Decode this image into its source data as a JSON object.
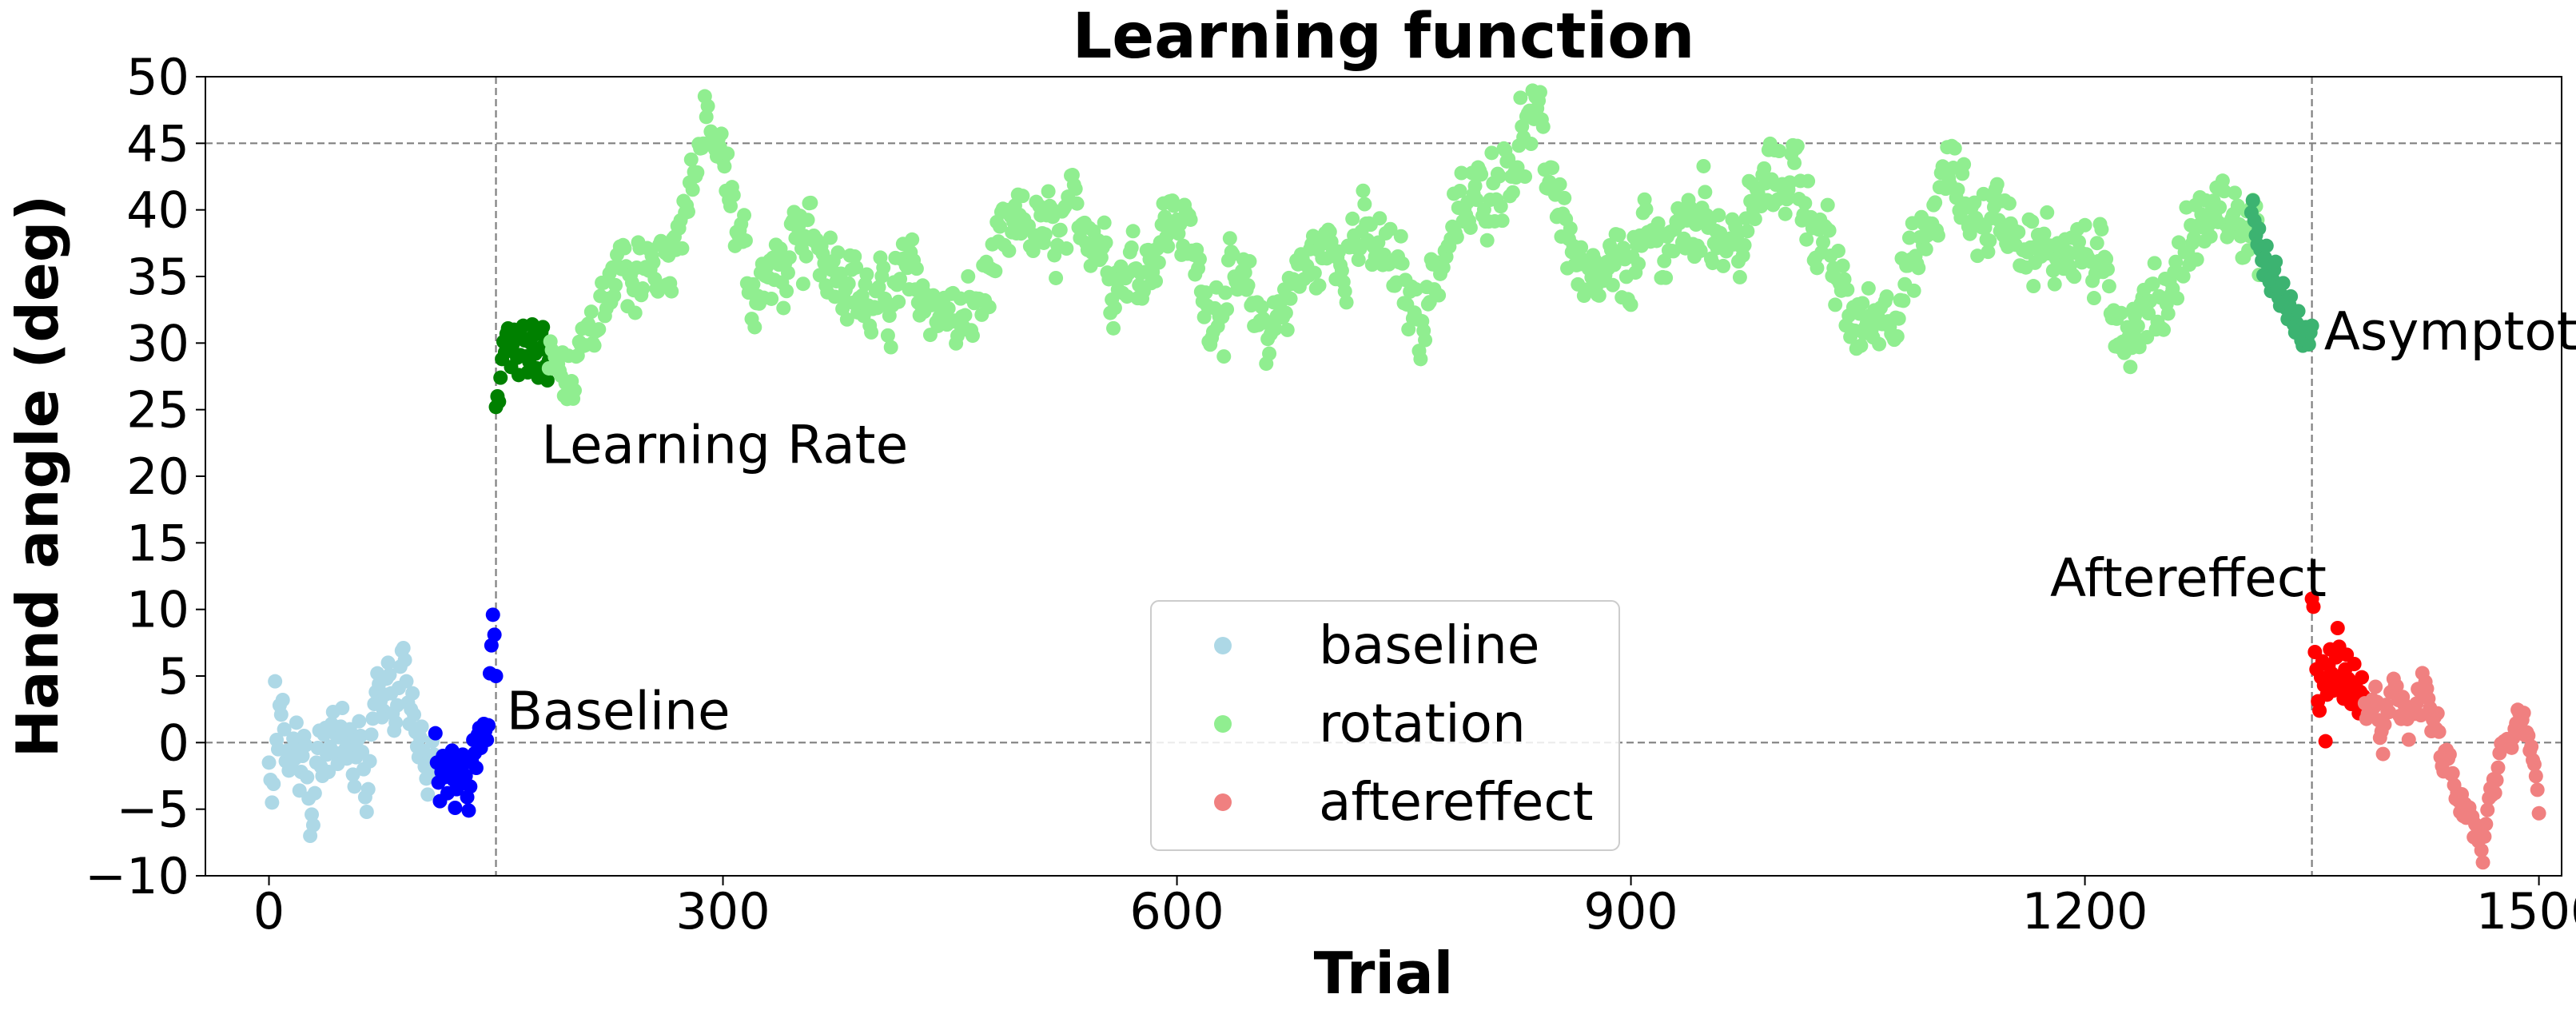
{
  "chart_data": {
    "type": "scatter",
    "title": "Learning function",
    "xlabel": "Trial",
    "ylabel": "Hand angle (deg)",
    "xlim": [
      -42,
      1515
    ],
    "ylim": [
      -10,
      50
    ],
    "xticks": [
      0,
      300,
      600,
      900,
      1200,
      1500
    ],
    "yticks": [
      -10,
      -5,
      0,
      5,
      10,
      15,
      20,
      25,
      30,
      35,
      40,
      45,
      50
    ],
    "reference_lines": {
      "horizontal": [
        0,
        45
      ],
      "vertical": [
        150,
        1350
      ],
      "style": "dashed gray"
    },
    "legend": {
      "placement": "lower center",
      "entries": [
        {
          "label": "baseline",
          "color": "#add8e6"
        },
        {
          "label": "rotation",
          "color": "#90ee90"
        },
        {
          "label": "aftereffect",
          "color": "#f08080"
        }
      ]
    },
    "annotations": [
      {
        "text": "Baseline",
        "x": 157,
        "y": 1.0,
        "color": "#0000ff"
      },
      {
        "text": "Learning Rate",
        "x": 180,
        "y": 21.0,
        "color": "#008000"
      },
      {
        "text": "Asymptote",
        "x": 1358,
        "y": 29.5,
        "color": "#3cb371"
      },
      {
        "text": "Aftereffect",
        "x": 1177,
        "y": 11.0,
        "color": "#ff0000"
      }
    ],
    "series": [
      {
        "name": "baseline",
        "color": "#add8e6",
        "x_range": [
          0,
          110
        ],
        "values": [
          -1.5,
          -2.8,
          -4.5,
          -3.1,
          4.6,
          0.2,
          -0.5,
          2.8,
          2.1,
          3.2,
          1.0,
          -1.4,
          -0.6,
          -2.1,
          -0.8,
          -1.9,
          0.3,
          -1.2,
          1.5,
          -0.4,
          -3.6,
          -2.2,
          -1.0,
          0.5,
          -0.2,
          -2.6,
          -4.2,
          -7.0,
          -5.4,
          -6.2,
          -3.8,
          -1.5,
          -0.4,
          0.9,
          -1.8,
          -2.5,
          0.6,
          1.1,
          -0.9,
          -2.2,
          -0.3,
          1.4,
          2.3,
          0.7,
          -0.8,
          -1.6,
          0.4,
          1.2,
          2.6,
          0.8,
          -0.5,
          -1.2,
          0.3,
          1.0,
          -0.6,
          -2.4,
          -3.3,
          -1.1,
          0.2,
          1.6,
          0.5,
          -0.7,
          -2.0,
          -4.1,
          -5.2,
          -3.5,
          -1.4,
          0.6,
          1.8,
          2.9,
          3.8,
          5.2,
          4.4,
          3.1,
          1.9,
          2.4,
          3.6,
          4.8,
          6.0,
          5.1,
          3.7,
          2.2,
          0.9,
          1.5,
          2.8,
          4.1,
          5.7,
          6.9,
          7.1,
          6.2,
          4.6,
          3.0,
          1.4,
          2.5,
          3.7,
          2.1,
          0.8,
          -0.3,
          -1.1,
          0.4,
          1.2,
          -0.6,
          -1.8,
          -2.7,
          -3.9,
          -2.5,
          -1.3,
          0.1,
          -0.9,
          -2.1
        ]
      },
      {
        "name": "baseline-late",
        "color": "#0000ff",
        "x_range": [
          110,
          150
        ],
        "values": [
          0.7,
          -1.5,
          -3.0,
          -4.4,
          -2.2,
          -1.0,
          -2.6,
          -1.9,
          -3.8,
          -2.4,
          -1.1,
          -0.6,
          -2.8,
          -4.9,
          -3.5,
          -1.7,
          -2.3,
          -3.1,
          -0.9,
          -1.6,
          -2.5,
          -4.1,
          -5.1,
          -3.3,
          -1.4,
          0.2,
          -0.8,
          -1.9,
          0.6,
          1.1,
          -0.4,
          0.3,
          1.4,
          0.9,
          0.2,
          1.3,
          5.2,
          7.3,
          9.6,
          8.1,
          5.0
        ]
      },
      {
        "name": "rotation-early",
        "color": "#008000",
        "x_range": [
          150,
          185
        ],
        "values": [
          25.2,
          26.0,
          25.6,
          27.4,
          28.8,
          30.1,
          29.3,
          30.7,
          31.1,
          29.6,
          28.2,
          29.9,
          31.0,
          30.4,
          28.9,
          27.6,
          29.1,
          30.5,
          31.3,
          30.2,
          29.0,
          27.8,
          28.6,
          30.0,
          31.4,
          30.6,
          29.2,
          28.1,
          27.4,
          29.5,
          30.8,
          31.2,
          29.9,
          28.3,
          27.2,
          28.7
        ]
      },
      {
        "name": "rotation",
        "color": "#90ee90",
        "x_range": [
          185,
          1315
        ],
        "anchors": [
          [
            185,
            28.0
          ],
          [
            200,
            26.5
          ],
          [
            215,
            32.0
          ],
          [
            235,
            36.0
          ],
          [
            250,
            35.0
          ],
          [
            270,
            38.0
          ],
          [
            280,
            43.0
          ],
          [
            290,
            46.0
          ],
          [
            300,
            43.0
          ],
          [
            320,
            34.0
          ],
          [
            340,
            35.5
          ],
          [
            360,
            38.0
          ],
          [
            380,
            36.0
          ],
          [
            400,
            32.0
          ],
          [
            420,
            35.0
          ],
          [
            440,
            33.0
          ],
          [
            460,
            31.0
          ],
          [
            480,
            36.0
          ],
          [
            500,
            39.0
          ],
          [
            520,
            37.5
          ],
          [
            540,
            40.0
          ],
          [
            560,
            35.0
          ],
          [
            580,
            36.5
          ],
          [
            600,
            40.0
          ],
          [
            620,
            33.0
          ],
          [
            640,
            34.0
          ],
          [
            660,
            31.0
          ],
          [
            680,
            35.0
          ],
          [
            700,
            37.0
          ],
          [
            720,
            38.0
          ],
          [
            740,
            36.0
          ],
          [
            760,
            32.0
          ],
          [
            780,
            38.0
          ],
          [
            800,
            41.0
          ],
          [
            820,
            44.0
          ],
          [
            835,
            46.5
          ],
          [
            850,
            42.0
          ],
          [
            870,
            33.0
          ],
          [
            890,
            35.0
          ],
          [
            910,
            37.0
          ],
          [
            930,
            38.0
          ],
          [
            950,
            40.0
          ],
          [
            970,
            37.0
          ],
          [
            990,
            42.0
          ],
          [
            1010,
            43.0
          ],
          [
            1030,
            36.0
          ],
          [
            1050,
            31.0
          ],
          [
            1070,
            33.0
          ],
          [
            1090,
            36.0
          ],
          [
            1110,
            43.0
          ],
          [
            1130,
            39.0
          ],
          [
            1150,
            40.0
          ],
          [
            1170,
            36.0
          ],
          [
            1190,
            38.0
          ],
          [
            1210,
            35.0
          ],
          [
            1230,
            31.0
          ],
          [
            1250,
            33.0
          ],
          [
            1270,
            38.0
          ],
          [
            1290,
            40.0
          ],
          [
            1315,
            38.0
          ]
        ],
        "spread": 4.5
      },
      {
        "name": "rotation-late",
        "color": "#3cb371",
        "x_range": [
          1310,
          1350
        ],
        "values": [
          39.8,
          40.7,
          39.2,
          38.1,
          37.4,
          38.6,
          37.0,
          36.2,
          35.1,
          36.4,
          37.3,
          35.8,
          34.6,
          33.9,
          34.8,
          35.5,
          36.1,
          34.2,
          33.4,
          32.8,
          33.6,
          34.5,
          33.1,
          32.6,
          31.8,
          32.9,
          33.5,
          32.2,
          31.4,
          30.8,
          31.5,
          32.4,
          31.0,
          30.2,
          29.8,
          30.6,
          31.2,
          30.4,
          29.9,
          30.8,
          31.3
        ]
      },
      {
        "name": "aftereffect-early",
        "color": "#ff0000",
        "x_range": [
          1350,
          1385
        ],
        "values": [
          10.8,
          10.2,
          6.8,
          5.5,
          3.1,
          2.4,
          4.9,
          6.1,
          4.3,
          0.1,
          3.6,
          5.8,
          7.0,
          5.2,
          3.9,
          4.6,
          6.4,
          8.6,
          7.2,
          5.0,
          4.1,
          3.3,
          5.5,
          6.6,
          4.8,
          3.7,
          2.9,
          4.4,
          5.9,
          4.2,
          3.1,
          2.2,
          3.8,
          4.9,
          3.5,
          2.6
        ]
      },
      {
        "name": "aftereffect",
        "color": "#f08080",
        "x_range": [
          1385,
          1500
        ],
        "anchors": [
          [
            1385,
            3.0
          ],
          [
            1395,
            1.0
          ],
          [
            1405,
            3.0
          ],
          [
            1415,
            1.5
          ],
          [
            1425,
            4.5
          ],
          [
            1435,
            -1.0
          ],
          [
            1445,
            -3.0
          ],
          [
            1455,
            -5.5
          ],
          [
            1462,
            -8.0
          ],
          [
            1470,
            -4.0
          ],
          [
            1480,
            -1.0
          ],
          [
            1490,
            2.0
          ],
          [
            1495,
            -2.0
          ],
          [
            1500,
            -4.0
          ]
        ],
        "spread": 2.6
      }
    ]
  }
}
